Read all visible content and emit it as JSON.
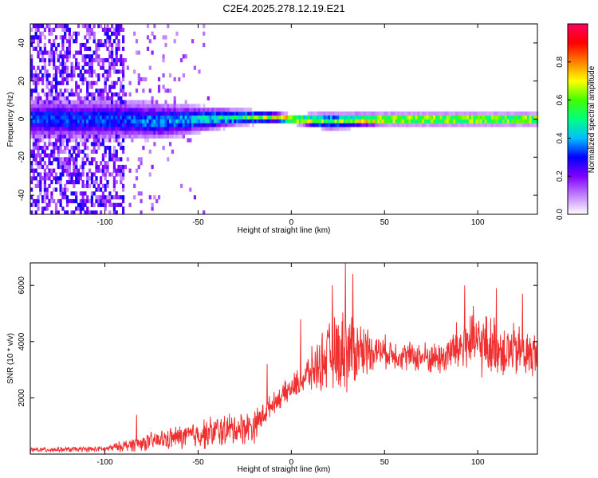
{
  "figure_title": "C2E4.2025.278.12.19.E21",
  "chart_data": [
    {
      "type": "heatmap",
      "title": "",
      "xlabel": "Height of straight line (km)",
      "ylabel": "Frequency (Hz)",
      "xlim": [
        -140,
        132
      ],
      "ylim": [
        -50,
        50
      ],
      "xticks": [
        -100,
        -50,
        0,
        50,
        100
      ],
      "yticks": [
        -40,
        -20,
        0,
        20,
        40
      ],
      "colorbar": {
        "label": "Normalized spectral amplitude",
        "range": [
          0.0,
          1.0
        ],
        "ticks": [
          "0.0",
          "0.2",
          "0.4",
          "0.6",
          "0.8"
        ],
        "colors": [
          "#ffffff",
          "#c080ff",
          "#8000ff",
          "#0000ff",
          "#00c0ff",
          "#00ff80",
          "#40ff00",
          "#ffff00",
          "#ff8000",
          "#ff0000",
          "#ff0060"
        ]
      },
      "ridge": {
        "description_free_profile": [
          {
            "height": -95,
            "center": 0,
            "width": 8,
            "amp": 0.35
          },
          {
            "height": -70,
            "center": -1,
            "width": 7,
            "amp": 0.4
          },
          {
            "height": -50,
            "center": 0,
            "width": 5,
            "amp": 0.45
          },
          {
            "height": -30,
            "center": 1,
            "width": 3,
            "amp": 0.55
          },
          {
            "height": -10,
            "center": 1,
            "width": 2,
            "amp": 0.7
          },
          {
            "height": 0,
            "center": 0,
            "width": 1.5,
            "amp": 0.95
          },
          {
            "height": 20,
            "center": -1,
            "width": 3,
            "amp": 0.6
          },
          {
            "height": 50,
            "center": 0,
            "width": 2,
            "amp": 0.85
          },
          {
            "height": 100,
            "center": 0,
            "width": 2,
            "amp": 0.8
          },
          {
            "height": 132,
            "center": 0,
            "width": 2,
            "amp": 0.8
          }
        ],
        "noise_cutoff_height": -90
      }
    },
    {
      "type": "line",
      "title": "",
      "xlabel": "Height of straight line (km)",
      "ylabel": "SNR (10 * v/v)",
      "xlim": [
        -140,
        132
      ],
      "ylim": [
        0,
        6800
      ],
      "xticks": [
        -100,
        -50,
        0,
        50,
        100
      ],
      "yticks": [
        2000,
        4000,
        6000
      ],
      "series": [
        {
          "color": "#f03030",
          "envelope": [
            {
              "x": -140,
              "mean": 150,
              "spread": 100
            },
            {
              "x": -100,
              "mean": 180,
              "spread": 120
            },
            {
              "x": -85,
              "mean": 350,
              "spread": 300
            },
            {
              "x": -60,
              "mean": 600,
              "spread": 500
            },
            {
              "x": -40,
              "mean": 800,
              "spread": 700
            },
            {
              "x": -20,
              "mean": 1000,
              "spread": 700
            },
            {
              "x": -10,
              "mean": 1800,
              "spread": 400
            },
            {
              "x": 5,
              "mean": 2600,
              "spread": 600
            },
            {
              "x": 20,
              "mean": 3500,
              "spread": 1400
            },
            {
              "x": 30,
              "mean": 3700,
              "spread": 1800
            },
            {
              "x": 45,
              "mean": 3700,
              "spread": 700
            },
            {
              "x": 60,
              "mean": 3500,
              "spread": 600
            },
            {
              "x": 80,
              "mean": 3400,
              "spread": 700
            },
            {
              "x": 95,
              "mean": 4000,
              "spread": 1400
            },
            {
              "x": 115,
              "mean": 3700,
              "spread": 1200
            },
            {
              "x": 132,
              "mean": 3500,
              "spread": 1000
            }
          ],
          "peak": {
            "x": 29,
            "y": 6800
          },
          "spikes": [
            {
              "x": -83,
              "y": 1400
            },
            {
              "x": -13,
              "y": 3200
            },
            {
              "x": 5,
              "y": 4800
            },
            {
              "x": 22,
              "y": 6000
            },
            {
              "x": 33,
              "y": 6400
            },
            {
              "x": 93,
              "y": 6000
            },
            {
              "x": 110,
              "y": 5900
            },
            {
              "x": 124,
              "y": 5700
            }
          ],
          "points_per_km": 5
        }
      ]
    }
  ]
}
